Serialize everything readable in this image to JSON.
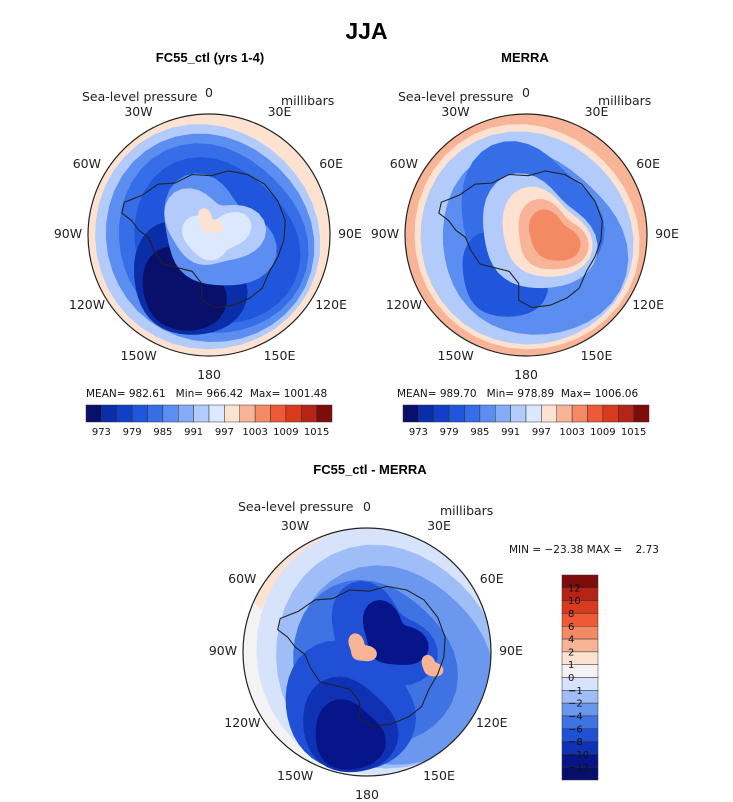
{
  "figure": {
    "title": "JJA"
  },
  "panels": [
    {
      "id": "model",
      "title": "FC55_ctl (yrs 1-4)",
      "left_label": "Sea-level pressure",
      "right_label": "millibars",
      "stats": {
        "mean_label": "MEAN=",
        "mean": "982.61",
        "min_label": "Min=",
        "min": "966.42",
        "max_label": "Max=",
        "max": "1001.48"
      }
    },
    {
      "id": "obs",
      "title": "MERRA",
      "left_label": "Sea-level pressure",
      "right_label": "millibars",
      "stats": {
        "mean_label": "MEAN=",
        "mean": "989.70",
        "min_label": "Min=",
        "min": "978.89",
        "max_label": "Max=",
        "max": "1006.06"
      }
    },
    {
      "id": "diff",
      "title": "FC55_ctl - MERRA",
      "left_label": "Sea-level pressure",
      "right_label": "millibars",
      "stats_line": "MIN = −23.38 MAX =    2.73"
    }
  ],
  "lon_labels": [
    "0",
    "30E",
    "60E",
    "90E",
    "120E",
    "150E",
    "180",
    "150W",
    "120W",
    "90W",
    "60W",
    "30W"
  ],
  "chart_data": [
    {
      "type": "heatmap",
      "name": "FC55_ctl (yrs 1-4)",
      "projection": "south-polar-stereographic",
      "variable": "Sea-level pressure",
      "units": "millibars",
      "colorbar_ticks": [
        "973",
        "979",
        "985",
        "991",
        "997",
        "1003",
        "1009",
        "1015"
      ],
      "levels": [
        970,
        973,
        976,
        979,
        982,
        985,
        988,
        991,
        994,
        997,
        1000,
        1003,
        1006,
        1009,
        1012,
        1015
      ],
      "colors": [
        "#08106b",
        "#0a2da8",
        "#123fc8",
        "#1f56dc",
        "#356ee6",
        "#5b8ef0",
        "#86acf5",
        "#b3cbfa",
        "#dce8fd",
        "#fde2d2",
        "#f8b497",
        "#f38a64",
        "#ee5a35",
        "#d73a1c",
        "#b52515",
        "#7d0c0a"
      ]
    },
    {
      "type": "heatmap",
      "name": "MERRA",
      "projection": "south-polar-stereographic",
      "variable": "Sea-level pressure",
      "units": "millibars",
      "colorbar_ticks": [
        "973",
        "979",
        "985",
        "991",
        "997",
        "1003",
        "1009",
        "1015"
      ],
      "levels": [
        970,
        973,
        976,
        979,
        982,
        985,
        988,
        991,
        994,
        997,
        1000,
        1003,
        1006,
        1009,
        1012,
        1015
      ],
      "colors": [
        "#08106b",
        "#0a2da8",
        "#123fc8",
        "#1f56dc",
        "#356ee6",
        "#5b8ef0",
        "#86acf5",
        "#b3cbfa",
        "#dce8fd",
        "#fde2d2",
        "#f8b497",
        "#f38a64",
        "#ee5a35",
        "#d73a1c",
        "#b52515",
        "#7d0c0a"
      ]
    },
    {
      "type": "heatmap",
      "name": "FC55_ctl - MERRA",
      "projection": "south-polar-stereographic",
      "variable": "Sea-level pressure",
      "units": "millibars",
      "colorbar_ticks": [
        "12",
        "10",
        "8",
        "6",
        "4",
        "2",
        "1",
        "0",
        "−1",
        "−2",
        "−4",
        "−6",
        "−8",
        "−10",
        "−12"
      ],
      "colors_top_to_bottom": [
        "#7d0c0a",
        "#b52515",
        "#d73a1c",
        "#ee5a35",
        "#f38a64",
        "#f8b497",
        "#fde2d2",
        "#f3f3f3",
        "#d6e3fb",
        "#9fbdf6",
        "#6b98ee",
        "#3f72e3",
        "#1f50d6",
        "#0f31b4",
        "#07158a",
        "#06106a"
      ]
    }
  ],
  "colors": {
    "coast": "#222222",
    "frame": "#222222"
  }
}
